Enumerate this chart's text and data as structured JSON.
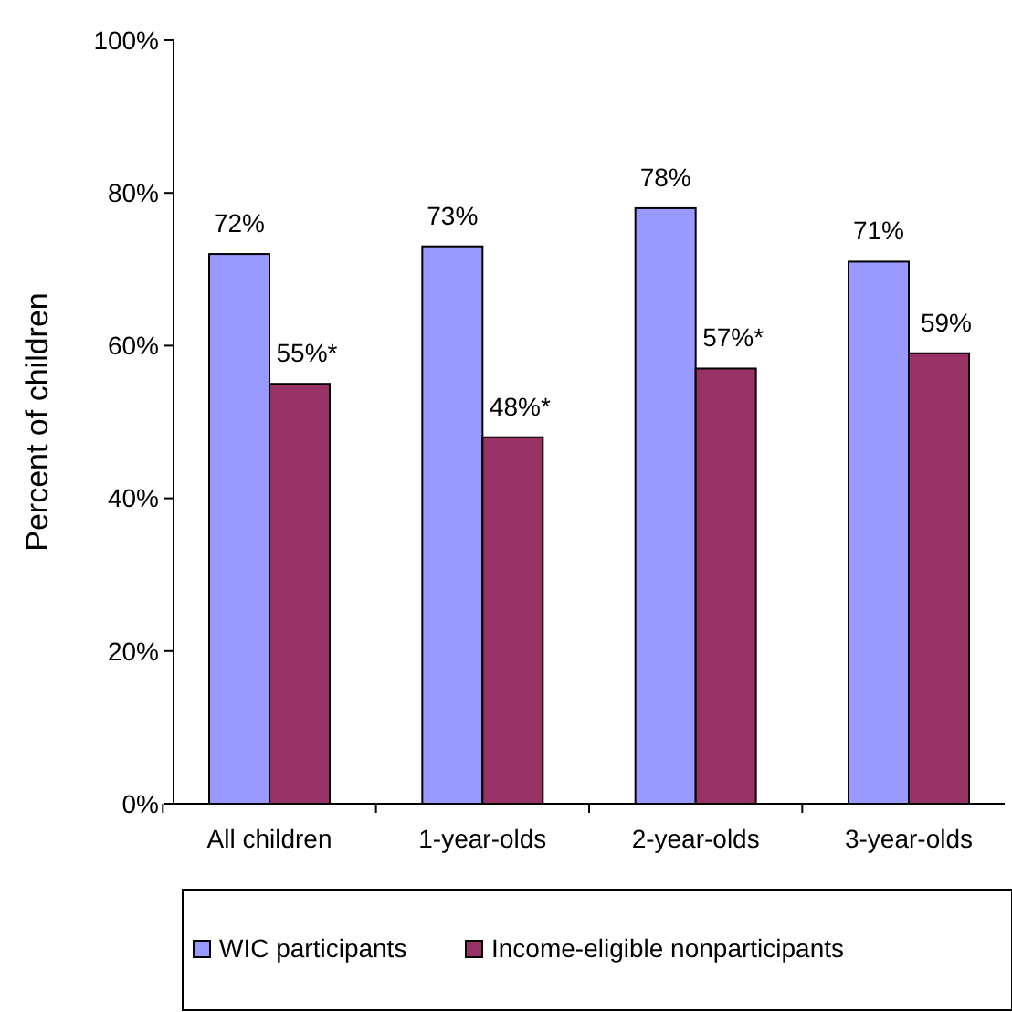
{
  "chart_data": {
    "type": "bar",
    "ylabel": "Percent of children",
    "categories": [
      "All children",
      "1-year-olds",
      "2-year-olds",
      "3-year-olds"
    ],
    "series": [
      {
        "name": "WIC participants",
        "color": "#9999ff",
        "values": [
          72,
          73,
          78,
          71
        ],
        "value_labels": [
          "72%",
          "73%",
          "78%",
          "71%"
        ]
      },
      {
        "name": "Income-eligible nonparticipants",
        "color": "#993366",
        "values": [
          55,
          48,
          57,
          59
        ],
        "value_labels": [
          "55%*",
          "48%*",
          "57%*",
          "59%"
        ]
      }
    ],
    "ylim": [
      0,
      100
    ],
    "yticks": [
      {
        "value": 0,
        "label": "0%"
      },
      {
        "value": 20,
        "label": "20%"
      },
      {
        "value": 40,
        "label": "40%"
      },
      {
        "value": 60,
        "label": "60%"
      },
      {
        "value": 80,
        "label": "80%"
      },
      {
        "value": 100,
        "label": "100%"
      }
    ],
    "grid": false,
    "legend": "bottom"
  }
}
